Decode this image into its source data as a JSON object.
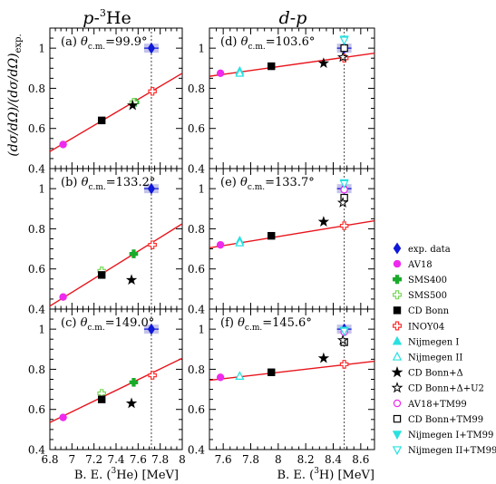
{
  "figure": {
    "column_titles": [
      {
        "lead": "p",
        "dash": "-",
        "sup": "3",
        "rest": "He"
      },
      {
        "lead": "d",
        "dash": "-",
        "sup": "",
        "rest": "p"
      }
    ],
    "ylabel": "(dσ/dΩ)/(dσ/dΩ)",
    "ylabel_sub": "exp.",
    "xlabels": [
      {
        "pre": "B. E. (",
        "sup": "3",
        "post": "He)  [MeV]"
      },
      {
        "pre": "B. E. (",
        "sup": "3",
        "post": "H)  [MeV]"
      }
    ],
    "reference_line_style": "dotted vertical at experimental binding energy",
    "fit_line_color": "#e8141c"
  },
  "legend": {
    "placement": "right",
    "items": [
      {
        "label": "exp. data",
        "marker": "diamond",
        "fill": true,
        "color": "#1018d8"
      },
      {
        "label": "AV18",
        "marker": "circle",
        "fill": true,
        "color": "#ee2aee"
      },
      {
        "label": "SMS400",
        "marker": "cross",
        "fill": true,
        "color": "#1aaa2a"
      },
      {
        "label": "SMS500",
        "marker": "cross",
        "fill": false,
        "color": "#7ad85a"
      },
      {
        "label": "CD Bonn",
        "marker": "square",
        "fill": true,
        "color": "#000000"
      },
      {
        "label": "INOY04",
        "marker": "cross",
        "fill": false,
        "color": "#ff3030"
      },
      {
        "label": "Nijmegen I",
        "marker": "triangle-up",
        "fill": true,
        "color": "#2ae0e0"
      },
      {
        "label": "Nijmegen II",
        "marker": "triangle-up",
        "fill": false,
        "color": "#2ae0e0"
      },
      {
        "label": "CD Bonn+Δ",
        "marker": "star",
        "fill": true,
        "color": "#000000"
      },
      {
        "label": "CD Bonn+Δ+U2",
        "marker": "star",
        "fill": false,
        "color": "#000000"
      },
      {
        "label": "AV18+TM99",
        "marker": "circle",
        "fill": false,
        "color": "#ee2aee"
      },
      {
        "label": "CD Bonn+TM99",
        "marker": "square",
        "fill": false,
        "color": "#000000"
      },
      {
        "label": "Nijmegen I+TM99",
        "marker": "triangle-down",
        "fill": true,
        "color": "#2ae0e0"
      },
      {
        "label": "Nijmegen II+TM99",
        "marker": "triangle-down",
        "fill": false,
        "color": "#2ae0e0"
      }
    ]
  },
  "chart_data": [
    {
      "type": "scatter",
      "panel": "a",
      "label": "(a)",
      "theta_prefix": "θ",
      "theta_sub": "c.m.",
      "theta_value": "=99.9°",
      "xlim": [
        6.8,
        8.0
      ],
      "ylim": [
        0.4,
        1.1
      ],
      "xticks": [
        "6.8",
        "7",
        "7.2",
        "7.4",
        "7.6",
        "7.8",
        "8"
      ],
      "yticks": [
        "0.4",
        "0.6",
        "0.8",
        "1"
      ],
      "exp_be": 7.72,
      "fit": {
        "x": [
          6.8,
          8.0
        ],
        "y": [
          0.485,
          0.875
        ]
      },
      "points": [
        {
          "series": "exp. data",
          "x": 7.72,
          "y": 1.0,
          "err": 0.02
        },
        {
          "series": "AV18",
          "x": 6.92,
          "y": 0.52
        },
        {
          "series": "SMS400",
          "x": 7.57,
          "y": 0.73
        },
        {
          "series": "SMS500",
          "x": 7.56,
          "y": 0.73
        },
        {
          "series": "CD Bonn",
          "x": 7.27,
          "y": 0.64
        },
        {
          "series": "INOY04",
          "x": 7.73,
          "y": 0.785
        },
        {
          "series": "CD Bonn+Δ",
          "x": 7.55,
          "y": 0.715
        }
      ]
    },
    {
      "type": "scatter",
      "panel": "b",
      "label": "(b)",
      "theta_prefix": "θ",
      "theta_sub": "c.m.",
      "theta_value": "=133.2°",
      "xlim": [
        6.8,
        8.0
      ],
      "ylim": [
        0.4,
        1.1
      ],
      "xticks": [
        "6.8",
        "7",
        "7.2",
        "7.4",
        "7.6",
        "7.8",
        "8"
      ],
      "yticks": [
        "0.4",
        "0.6",
        "0.8",
        "1"
      ],
      "exp_be": 7.72,
      "fit": {
        "x": [
          6.8,
          8.0
        ],
        "y": [
          0.415,
          0.825
        ]
      },
      "points": [
        {
          "series": "exp. data",
          "x": 7.72,
          "y": 1.0,
          "err": 0.02
        },
        {
          "series": "AV18",
          "x": 6.92,
          "y": 0.46
        },
        {
          "series": "SMS400",
          "x": 7.56,
          "y": 0.675
        },
        {
          "series": "SMS500",
          "x": 7.27,
          "y": 0.59
        },
        {
          "series": "CD Bonn",
          "x": 7.27,
          "y": 0.57
        },
        {
          "series": "INOY04",
          "x": 7.73,
          "y": 0.72
        },
        {
          "series": "CD Bonn+Δ",
          "x": 7.54,
          "y": 0.545
        }
      ]
    },
    {
      "type": "scatter",
      "panel": "c",
      "label": "(c)",
      "theta_prefix": "θ",
      "theta_sub": "c.m.",
      "theta_value": "=149.0°",
      "xlim": [
        6.8,
        8.0
      ],
      "ylim": [
        0.4,
        1.1
      ],
      "xticks": [
        "6.8",
        "7",
        "7.2",
        "7.4",
        "7.6",
        "7.8",
        "8"
      ],
      "yticks": [
        "0.4",
        "0.6",
        "0.8",
        "1"
      ],
      "exp_be": 7.72,
      "fit": {
        "x": [
          6.8,
          8.0
        ],
        "y": [
          0.535,
          0.855
        ]
      },
      "points": [
        {
          "series": "exp. data",
          "x": 7.72,
          "y": 1.0,
          "err": 0.02
        },
        {
          "series": "AV18",
          "x": 6.92,
          "y": 0.56
        },
        {
          "series": "SMS400",
          "x": 7.56,
          "y": 0.735
        },
        {
          "series": "SMS500",
          "x": 7.27,
          "y": 0.68
        },
        {
          "series": "CD Bonn",
          "x": 7.27,
          "y": 0.65
        },
        {
          "series": "INOY04",
          "x": 7.73,
          "y": 0.77
        },
        {
          "series": "CD Bonn+Δ",
          "x": 7.54,
          "y": 0.63
        }
      ]
    },
    {
      "type": "scatter",
      "panel": "d",
      "label": "(d)",
      "theta_prefix": "θ",
      "theta_sub": "c.m.",
      "theta_value": "=103.6°",
      "xlim": [
        7.5,
        8.7
      ],
      "ylim": [
        0.4,
        1.1
      ],
      "xticks": [
        "7.6",
        "7.8",
        "8",
        "8.2",
        "8.4",
        "8.6"
      ],
      "yticks": [
        "0.4",
        "0.6",
        "0.8",
        "1"
      ],
      "exp_be": 8.48,
      "fit": {
        "x": [
          7.5,
          8.7
        ],
        "y": [
          0.86,
          0.975
        ]
      },
      "points": [
        {
          "series": "exp. data",
          "x": 8.48,
          "y": 1.0,
          "err": 0.02
        },
        {
          "series": "AV18",
          "x": 7.58,
          "y": 0.875
        },
        {
          "series": "Nijmegen I",
          "x": 7.72,
          "y": 0.885
        },
        {
          "series": "Nijmegen II",
          "x": 7.72,
          "y": 0.875
        },
        {
          "series": "CD Bonn",
          "x": 7.95,
          "y": 0.91
        },
        {
          "series": "CD Bonn+Δ",
          "x": 8.33,
          "y": 0.925
        },
        {
          "series": "INOY04",
          "x": 8.48,
          "y": 0.95
        },
        {
          "series": "CD Bonn+Δ+U2",
          "x": 8.47,
          "y": 0.955
        },
        {
          "series": "AV18+TM99",
          "x": 8.48,
          "y": 1.0
        },
        {
          "series": "CD Bonn+TM99",
          "x": 8.48,
          "y": 1.0
        },
        {
          "series": "Nijmegen I+TM99",
          "x": 8.48,
          "y": 1.045
        },
        {
          "series": "Nijmegen II+TM99",
          "x": 8.48,
          "y": 1.04
        }
      ]
    },
    {
      "type": "scatter",
      "panel": "e",
      "label": "(e)",
      "theta_prefix": "θ",
      "theta_sub": "c.m.",
      "theta_value": "=133.7°",
      "xlim": [
        7.5,
        8.7
      ],
      "ylim": [
        0.4,
        1.1
      ],
      "xticks": [
        "7.6",
        "7.8",
        "8",
        "8.2",
        "8.4",
        "8.6"
      ],
      "yticks": [
        "0.4",
        "0.6",
        "0.8",
        "1"
      ],
      "exp_be": 8.48,
      "fit": {
        "x": [
          7.5,
          8.7
        ],
        "y": [
          0.705,
          0.84
        ]
      },
      "points": [
        {
          "series": "exp. data",
          "x": 8.48,
          "y": 1.0,
          "err": 0.02
        },
        {
          "series": "AV18",
          "x": 7.58,
          "y": 0.72
        },
        {
          "series": "Nijmegen I",
          "x": 7.72,
          "y": 0.74
        },
        {
          "series": "Nijmegen II",
          "x": 7.72,
          "y": 0.73
        },
        {
          "series": "CD Bonn",
          "x": 7.95,
          "y": 0.765
        },
        {
          "series": "CD Bonn+Δ",
          "x": 8.33,
          "y": 0.835
        },
        {
          "series": "INOY04",
          "x": 8.48,
          "y": 0.815
        },
        {
          "series": "CD Bonn+TM99",
          "x": 8.48,
          "y": 0.955
        },
        {
          "series": "CD Bonn+Δ+U2",
          "x": 8.47,
          "y": 0.93
        },
        {
          "series": "AV18+TM99",
          "x": 8.48,
          "y": 0.995
        },
        {
          "series": "Nijmegen I+TM99",
          "x": 8.48,
          "y": 1.03
        },
        {
          "series": "Nijmegen II+TM99",
          "x": 8.48,
          "y": 1.025
        }
      ]
    },
    {
      "type": "scatter",
      "panel": "f",
      "label": "(f)",
      "theta_prefix": "θ",
      "theta_sub": "c.m.",
      "theta_value": "=145.6°",
      "xlim": [
        7.5,
        8.7
      ],
      "ylim": [
        0.4,
        1.1
      ],
      "xticks": [
        "7.6",
        "7.8",
        "8",
        "8.2",
        "8.4",
        "8.6"
      ],
      "yticks": [
        "0.4",
        "0.6",
        "0.8",
        "1"
      ],
      "exp_be": 8.48,
      "fit": {
        "x": [
          7.5,
          8.7
        ],
        "y": [
          0.745,
          0.84
        ]
      },
      "points": [
        {
          "series": "exp. data",
          "x": 8.48,
          "y": 1.0,
          "err": 0.02
        },
        {
          "series": "AV18",
          "x": 7.58,
          "y": 0.76
        },
        {
          "series": "Nijmegen I",
          "x": 7.72,
          "y": 0.765
        },
        {
          "series": "Nijmegen II",
          "x": 7.72,
          "y": 0.765
        },
        {
          "series": "CD Bonn",
          "x": 7.95,
          "y": 0.785
        },
        {
          "series": "CD Bonn+Δ",
          "x": 8.33,
          "y": 0.855
        },
        {
          "series": "INOY04",
          "x": 8.48,
          "y": 0.825
        },
        {
          "series": "CD Bonn+TM99",
          "x": 8.48,
          "y": 0.935
        },
        {
          "series": "CD Bonn+Δ+U2",
          "x": 8.47,
          "y": 0.945
        },
        {
          "series": "AV18+TM99",
          "x": 8.48,
          "y": 0.985
        },
        {
          "series": "Nijmegen I+TM99",
          "x": 8.48,
          "y": 0.995
        },
        {
          "series": "Nijmegen II+TM99",
          "x": 8.48,
          "y": 0.99
        }
      ]
    }
  ]
}
